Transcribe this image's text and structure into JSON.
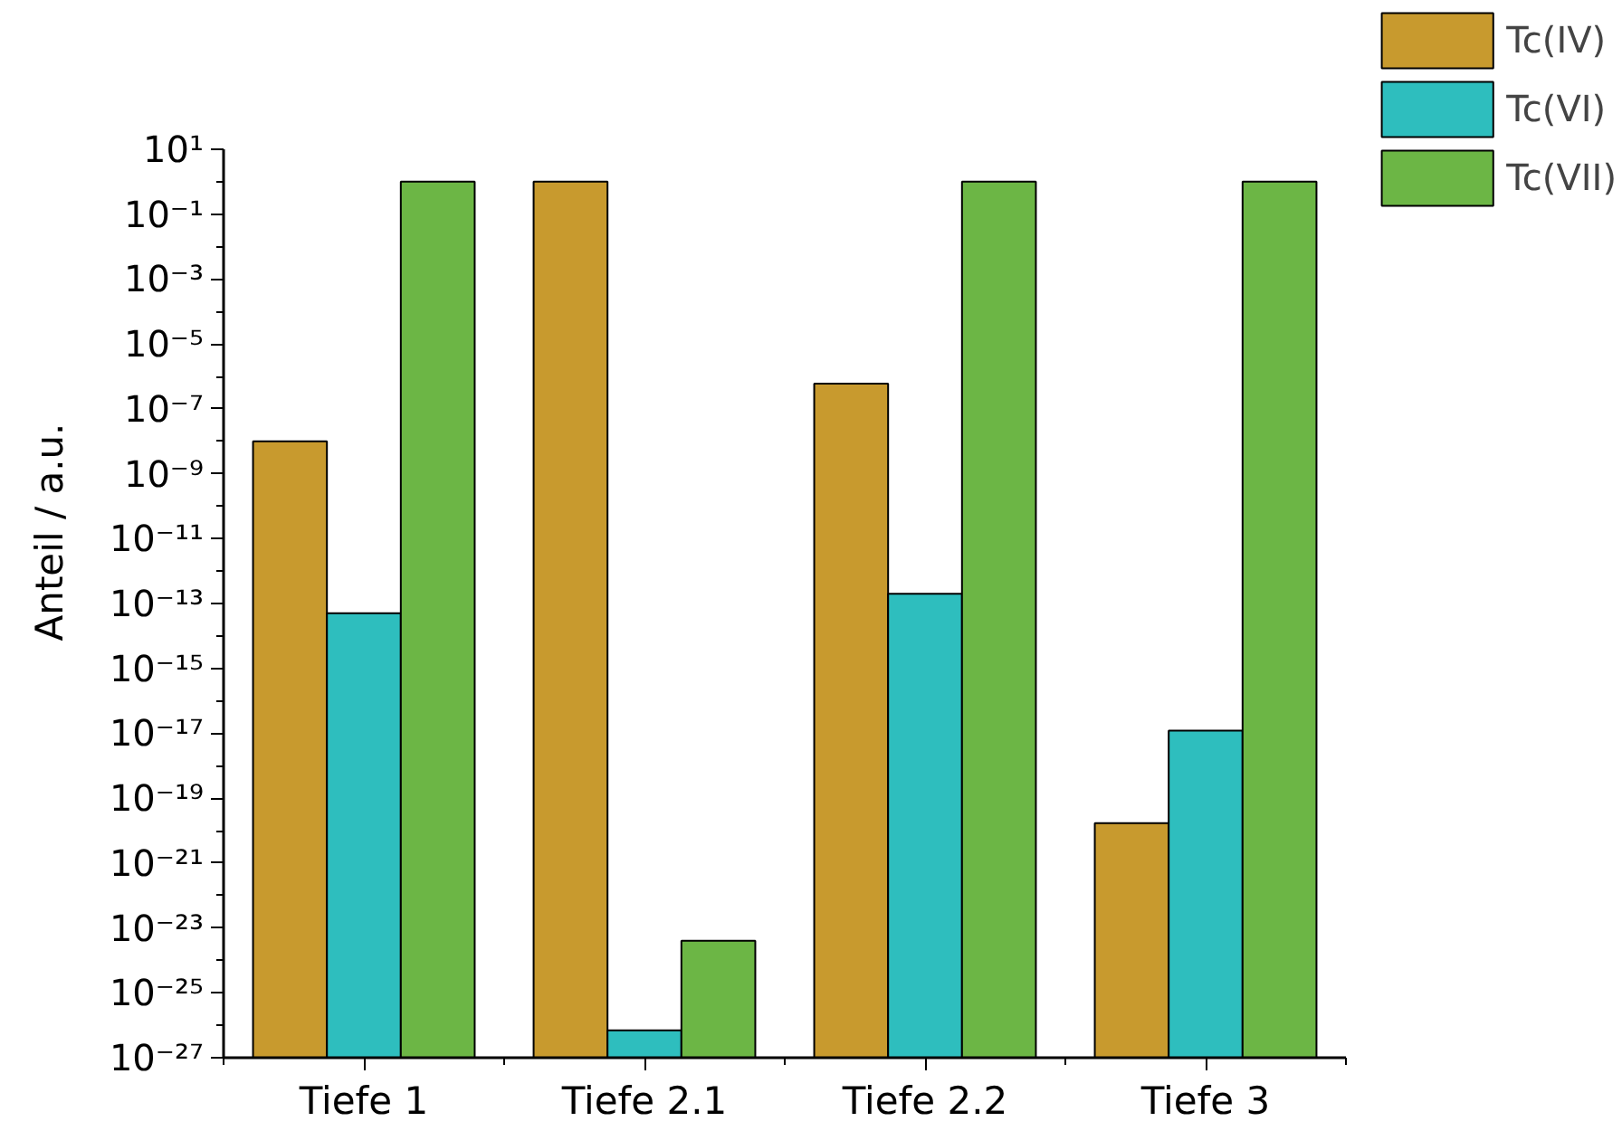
{
  "chart_data": {
    "type": "bar",
    "categories": [
      "Tiefe 1",
      "Tiefe 2.1",
      "Tiefe 2.2",
      "Tiefe 3"
    ],
    "ylabel": "Anteil / a.u.",
    "log": true,
    "ylim": [
      1e-27,
      10
    ],
    "yticks": [
      {
        "value": 10.0,
        "label": "10¹"
      },
      {
        "value": 0.1,
        "label": "10⁻¹"
      },
      {
        "value": 0.001,
        "label": "10⁻³"
      },
      {
        "value": 1e-05,
        "label": "10⁻⁵"
      },
      {
        "value": 1e-07,
        "label": "10⁻⁷"
      },
      {
        "value": 1e-09,
        "label": "10⁻⁹"
      },
      {
        "value": 1e-11,
        "label": "10⁻¹¹"
      },
      {
        "value": 1e-13,
        "label": "10⁻¹³"
      },
      {
        "value": 1e-15,
        "label": "10⁻¹⁵"
      },
      {
        "value": 1e-17,
        "label": "10⁻¹⁷"
      },
      {
        "value": 1e-19,
        "label": "10⁻¹⁹"
      },
      {
        "value": 1e-21,
        "label": "10⁻²¹"
      },
      {
        "value": 1e-23,
        "label": "10⁻²³"
      },
      {
        "value": 1e-25,
        "label": "10⁻²⁵"
      },
      {
        "value": 1e-27,
        "label": "10⁻²⁷"
      }
    ],
    "series": [
      {
        "name": "Tc(IV)",
        "color": "#c89a2e",
        "values": [
          1e-08,
          1,
          6e-07,
          1.7e-20
        ]
      },
      {
        "name": "Tc(VI)",
        "color": "#2ebebe",
        "values": [
          5e-14,
          7e-27,
          2e-13,
          1.2e-17
        ]
      },
      {
        "name": "Tc(VII)",
        "color": "#6cb645",
        "values": [
          1,
          4e-24,
          1,
          1
        ]
      }
    ],
    "legend": "top right",
    "grid": false
  }
}
